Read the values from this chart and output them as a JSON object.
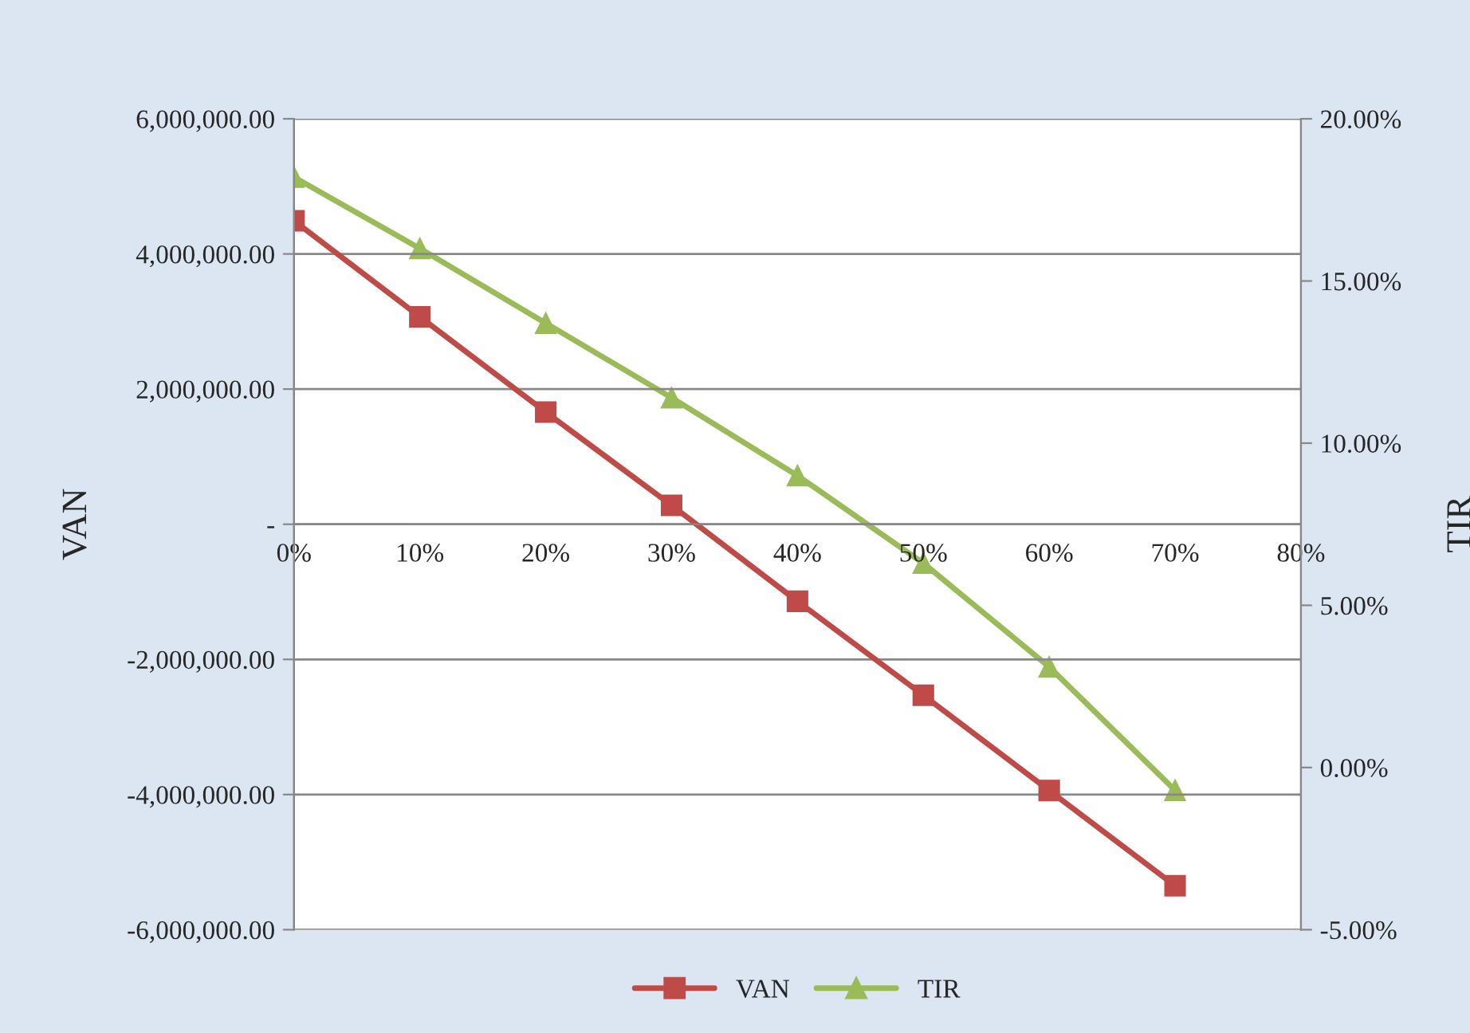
{
  "chart_data": {
    "type": "line",
    "ylabel": "VAN",
    "y2label": "TIR",
    "x": [
      0,
      0.1,
      0.2,
      0.3,
      0.4,
      0.5,
      0.6,
      0.7
    ],
    "xlim": [
      0,
      0.8
    ],
    "xticks": [
      {
        "value": 0,
        "label": "0%"
      },
      {
        "value": 0.1,
        "label": "10%"
      },
      {
        "value": 0.2,
        "label": "20%"
      },
      {
        "value": 0.3,
        "label": "30%"
      },
      {
        "value": 0.4,
        "label": "40%"
      },
      {
        "value": 0.5,
        "label": "50%"
      },
      {
        "value": 0.6,
        "label": "60%"
      },
      {
        "value": 0.7,
        "label": "70%"
      },
      {
        "value": 0.8,
        "label": "80%"
      }
    ],
    "ylim": [
      -6000000,
      6000000
    ],
    "yticks": [
      {
        "value": -6000000,
        "label": "-6,000,000.00"
      },
      {
        "value": -4000000,
        "label": "-4,000,000.00"
      },
      {
        "value": -2000000,
        "label": "-2,000,000.00"
      },
      {
        "value": 0,
        "label": "-"
      },
      {
        "value": 2000000,
        "label": "2,000,000.00"
      },
      {
        "value": 4000000,
        "label": "4,000,000.00"
      },
      {
        "value": 6000000,
        "label": "6,000,000.00"
      }
    ],
    "y2lim": [
      -5,
      20
    ],
    "y2ticks": [
      {
        "value": -5,
        "label": "-5.00%"
      },
      {
        "value": 0,
        "label": "0.00%"
      },
      {
        "value": 5,
        "label": "5.00%"
      },
      {
        "value": 10,
        "label": "10.00%"
      },
      {
        "value": 15,
        "label": "15.00%"
      },
      {
        "value": 20,
        "label": "20.00%"
      }
    ],
    "series": [
      {
        "name": "VAN",
        "color": "#be4b48",
        "marker": "square",
        "values": [
          4490000,
          3070000,
          1660000,
          280000,
          -1140000,
          -2530000,
          -3940000,
          -5350000
        ]
      },
      {
        "name": "TIR",
        "color": "#9bbb59",
        "marker": "triangle",
        "axis": "y2",
        "values": [
          18.2,
          16.0,
          13.7,
          11.4,
          9.0,
          6.3,
          3.1,
          -0.7
        ]
      }
    ],
    "grid": "y",
    "legend": "bottom"
  }
}
